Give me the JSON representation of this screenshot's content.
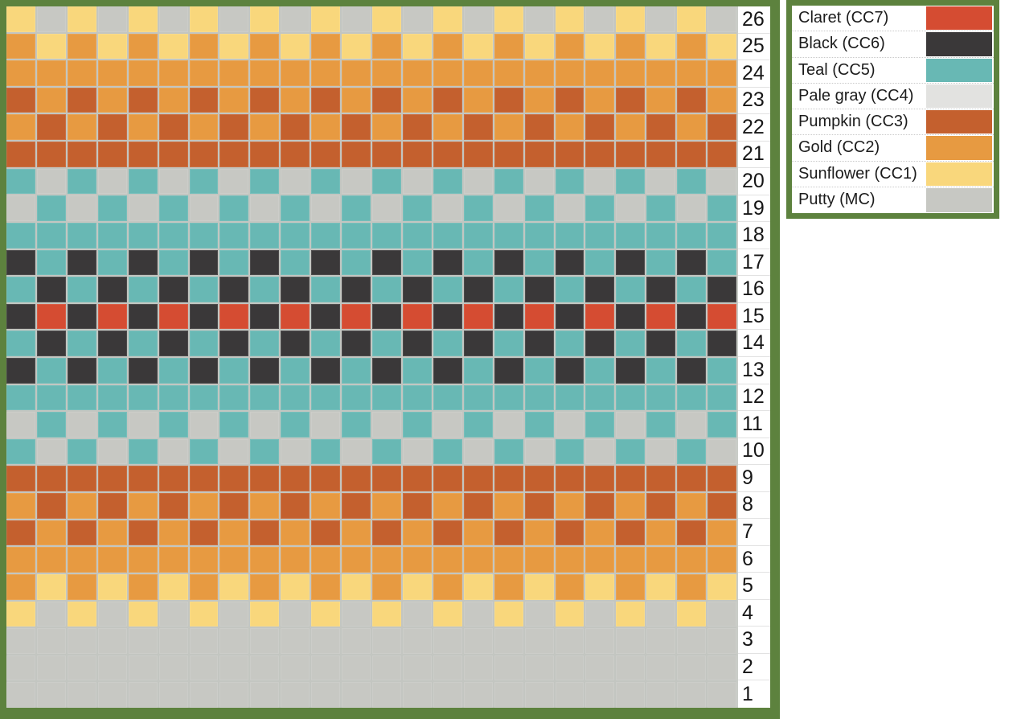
{
  "chart_border_color": "#5d823e",
  "gridline_color": "#c3c6c1",
  "palette": {
    "MC": {
      "name": "Putty",
      "hex": "#c7c8c3"
    },
    "CC1": {
      "name": "Sunflower",
      "hex": "#f9d77c"
    },
    "CC2": {
      "name": "Gold",
      "hex": "#e79a41"
    },
    "CC3": {
      "name": "Pumpkin",
      "hex": "#c4602e"
    },
    "CC4": {
      "name": "Pale gray",
      "hex": "#e2e2e0"
    },
    "CC5": {
      "name": "Teal",
      "hex": "#68b8b4"
    },
    "CC6": {
      "name": "Black",
      "hex": "#3a3839"
    },
    "CC7": {
      "name": "Claret",
      "hex": "#d54c32"
    }
  },
  "legend": {
    "items": [
      {
        "label": "Claret (CC7)",
        "color": "CC7"
      },
      {
        "label": "Black (CC6)",
        "color": "CC6"
      },
      {
        "label": "Teal (CC5)",
        "color": "CC5"
      },
      {
        "label": "Pale gray (CC4)",
        "color": "CC4"
      },
      {
        "label": "Pumpkin (CC3)",
        "color": "CC3"
      },
      {
        "label": "Gold (CC2)",
        "color": "CC2"
      },
      {
        "label": "Sunflower (CC1)",
        "color": "CC1"
      },
      {
        "label": "Putty (MC)",
        "color": "MC"
      }
    ]
  },
  "grid": {
    "columns": 24,
    "rows": [
      {
        "number": 26,
        "cells": "CC1 MC CC1 MC CC1 MC CC1 MC CC1 MC CC1 MC CC1 MC CC1 MC CC1 MC CC1 MC CC1 MC CC1 MC"
      },
      {
        "number": 25,
        "cells": "CC2 CC1 CC2 CC1 CC2 CC1 CC2 CC1 CC2 CC1 CC2 CC1 CC2 CC1 CC2 CC1 CC2 CC1 CC2 CC1 CC2 CC1 CC2 CC1"
      },
      {
        "number": 24,
        "cells": "CC2 CC2 CC2 CC2 CC2 CC2 CC2 CC2 CC2 CC2 CC2 CC2 CC2 CC2 CC2 CC2 CC2 CC2 CC2 CC2 CC2 CC2 CC2 CC2"
      },
      {
        "number": 23,
        "cells": "CC3 CC2 CC3 CC2 CC3 CC2 CC3 CC2 CC3 CC2 CC3 CC2 CC3 CC2 CC3 CC2 CC3 CC2 CC3 CC2 CC3 CC2 CC3 CC2"
      },
      {
        "number": 22,
        "cells": "CC2 CC3 CC2 CC3 CC2 CC3 CC2 CC3 CC2 CC3 CC2 CC3 CC2 CC3 CC2 CC3 CC2 CC3 CC2 CC3 CC2 CC3 CC2 CC3"
      },
      {
        "number": 21,
        "cells": "CC3 CC3 CC3 CC3 CC3 CC3 CC3 CC3 CC3 CC3 CC3 CC3 CC3 CC3 CC3 CC3 CC3 CC3 CC3 CC3 CC3 CC3 CC3 CC3"
      },
      {
        "number": 20,
        "cells": "CC5 MC CC5 MC CC5 MC CC5 MC CC5 MC CC5 MC CC5 MC CC5 MC CC5 MC CC5 MC CC5 MC CC5 MC"
      },
      {
        "number": 19,
        "cells": "MC CC5 MC CC5 MC CC5 MC CC5 MC CC5 MC CC5 MC CC5 MC CC5 MC CC5 MC CC5 MC CC5 MC CC5"
      },
      {
        "number": 18,
        "cells": "CC5 CC5 CC5 CC5 CC5 CC5 CC5 CC5 CC5 CC5 CC5 CC5 CC5 CC5 CC5 CC5 CC5 CC5 CC5 CC5 CC5 CC5 CC5 CC5"
      },
      {
        "number": 17,
        "cells": "CC6 CC5 CC6 CC5 CC6 CC5 CC6 CC5 CC6 CC5 CC6 CC5 CC6 CC5 CC6 CC5 CC6 CC5 CC6 CC5 CC6 CC5 CC6 CC5"
      },
      {
        "number": 16,
        "cells": "CC5 CC6 CC5 CC6 CC5 CC6 CC5 CC6 CC5 CC6 CC5 CC6 CC5 CC6 CC5 CC6 CC5 CC6 CC5 CC6 CC5 CC6 CC5 CC6"
      },
      {
        "number": 15,
        "cells": "CC6 CC7 CC6 CC7 CC6 CC7 CC6 CC7 CC6 CC7 CC6 CC7 CC6 CC7 CC6 CC7 CC6 CC7 CC6 CC7 CC6 CC7 CC6 CC7"
      },
      {
        "number": 14,
        "cells": "CC5 CC6 CC5 CC6 CC5 CC6 CC5 CC6 CC5 CC6 CC5 CC6 CC5 CC6 CC5 CC6 CC5 CC6 CC5 CC6 CC5 CC6 CC5 CC6"
      },
      {
        "number": 13,
        "cells": "CC6 CC5 CC6 CC5 CC6 CC5 CC6 CC5 CC6 CC5 CC6 CC5 CC6 CC5 CC6 CC5 CC6 CC5 CC6 CC5 CC6 CC5 CC6 CC5"
      },
      {
        "number": 12,
        "cells": "CC5 CC5 CC5 CC5 CC5 CC5 CC5 CC5 CC5 CC5 CC5 CC5 CC5 CC5 CC5 CC5 CC5 CC5 CC5 CC5 CC5 CC5 CC5 CC5"
      },
      {
        "number": 11,
        "cells": "MC CC5 MC CC5 MC CC5 MC CC5 MC CC5 MC CC5 MC CC5 MC CC5 MC CC5 MC CC5 MC CC5 MC CC5"
      },
      {
        "number": 10,
        "cells": "CC5 MC CC5 MC CC5 MC CC5 MC CC5 MC CC5 MC CC5 MC CC5 MC CC5 MC CC5 MC CC5 MC CC5 MC"
      },
      {
        "number": 9,
        "cells": "CC3 CC3 CC3 CC3 CC3 CC3 CC3 CC3 CC3 CC3 CC3 CC3 CC3 CC3 CC3 CC3 CC3 CC3 CC3 CC3 CC3 CC3 CC3 CC3"
      },
      {
        "number": 8,
        "cells": "CC2 CC3 CC2 CC3 CC2 CC3 CC2 CC3 CC2 CC3 CC2 CC3 CC2 CC3 CC2 CC3 CC2 CC3 CC2 CC3 CC2 CC3 CC2 CC3"
      },
      {
        "number": 7,
        "cells": "CC3 CC2 CC3 CC2 CC3 CC2 CC3 CC2 CC3 CC2 CC3 CC2 CC3 CC2 CC3 CC2 CC3 CC2 CC3 CC2 CC3 CC2 CC3 CC2"
      },
      {
        "number": 6,
        "cells": "CC2 CC2 CC2 CC2 CC2 CC2 CC2 CC2 CC2 CC2 CC2 CC2 CC2 CC2 CC2 CC2 CC2 CC2 CC2 CC2 CC2 CC2 CC2 CC2"
      },
      {
        "number": 5,
        "cells": "CC2 CC1 CC2 CC1 CC2 CC1 CC2 CC1 CC2 CC1 CC2 CC1 CC2 CC1 CC2 CC1 CC2 CC1 CC2 CC1 CC2 CC1 CC2 CC1"
      },
      {
        "number": 4,
        "cells": "CC1 MC CC1 MC CC1 MC CC1 MC CC1 MC CC1 MC CC1 MC CC1 MC CC1 MC CC1 MC CC1 MC CC1 MC"
      },
      {
        "number": 3,
        "cells": "MC MC MC MC MC MC MC MC MC MC MC MC MC MC MC MC MC MC MC MC MC MC MC MC"
      },
      {
        "number": 2,
        "cells": "MC MC MC MC MC MC MC MC MC MC MC MC MC MC MC MC MC MC MC MC MC MC MC MC"
      },
      {
        "number": 1,
        "cells": "MC MC MC MC MC MC MC MC MC MC MC MC MC MC MC MC MC MC MC MC MC MC MC MC"
      }
    ]
  }
}
